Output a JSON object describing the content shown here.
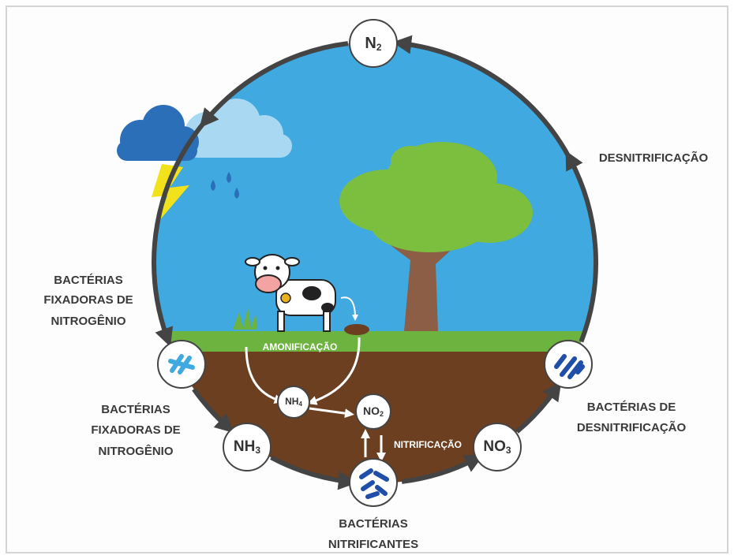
{
  "title_nodes": [
    {
      "label": "N",
      "sub": "2"
    },
    {
      "label": "NH",
      "sub": "3"
    },
    {
      "label": "NH",
      "sub": "4"
    },
    {
      "label": "NO",
      "sub": "2"
    },
    {
      "label": "NO",
      "sub": "3"
    }
  ],
  "labels": {
    "denitrification": "DESNITRIFICAÇÃO",
    "fixing_upper": [
      "BACTÉRIAS",
      "FIXADORAS DE",
      "NITROGÊNIO"
    ],
    "fixing_lower": [
      "BACTÉRIAS",
      "FIXADORAS DE",
      "NITROGÊNIO"
    ],
    "ammonification": "AMONIFICAÇÃO",
    "nitrification": "NITRIFICAÇÃO",
    "denitrifying_bacteria": [
      "BACTÉRIAS DE",
      "DESNITRIFICAÇÃO"
    ],
    "nitrifying_bacteria": [
      "BACTÉRIAS",
      "NITRIFICANTES"
    ]
  }
}
